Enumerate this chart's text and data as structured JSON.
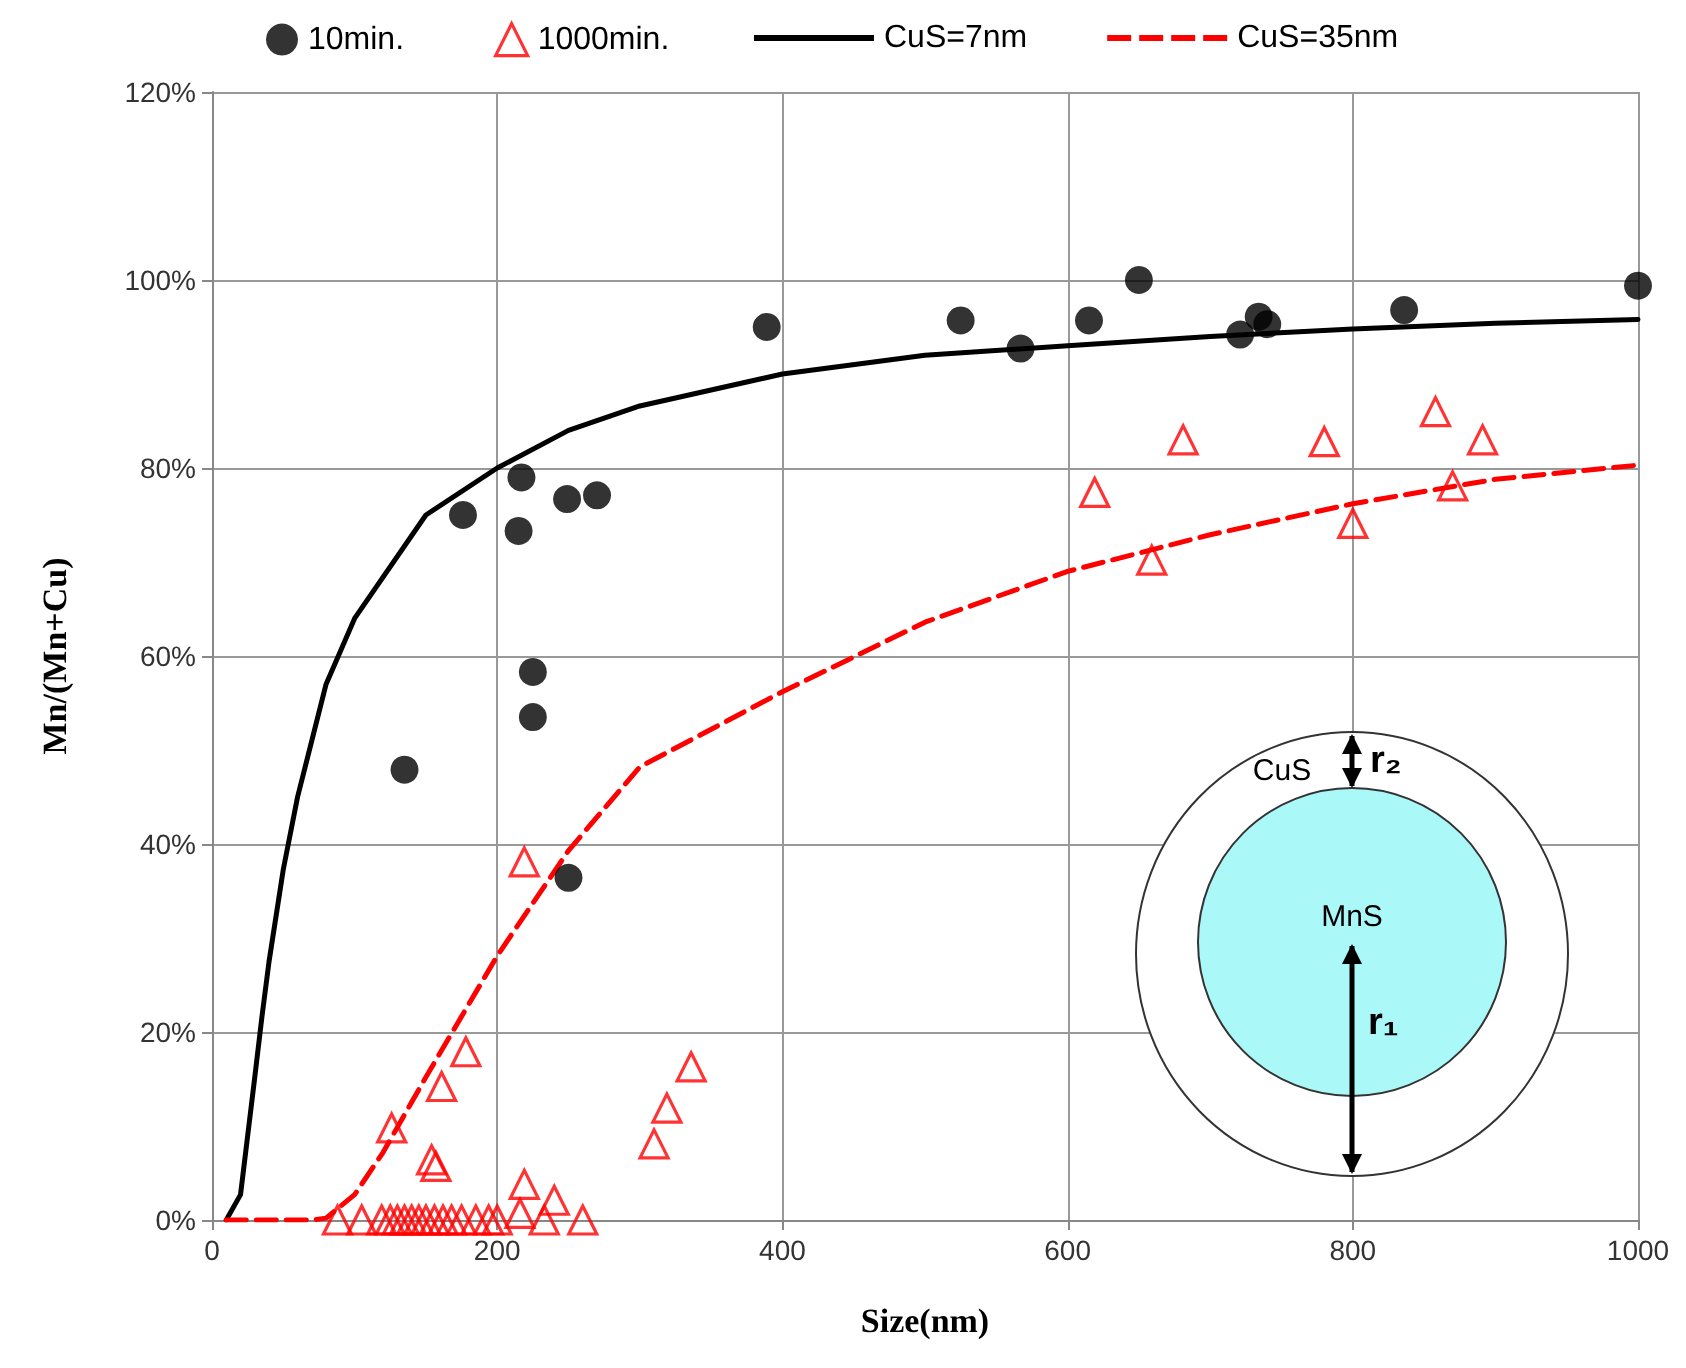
{
  "chart_data": {
    "type": "scatter",
    "xlabel": "Size(nm)",
    "ylabel": "Mn/(Mn+Cu)",
    "xlim": [
      0,
      1000
    ],
    "xticks": [
      0,
      200,
      400,
      600,
      800,
      1000
    ],
    "ylim": [
      0,
      120
    ],
    "yticks": [
      {
        "value": 0,
        "label": "0%"
      },
      {
        "value": 20,
        "label": "20%"
      },
      {
        "value": 40,
        "label": "40%"
      },
      {
        "value": 60,
        "label": "60%"
      },
      {
        "value": 80,
        "label": "80%"
      },
      {
        "value": 100,
        "label": "100%"
      },
      {
        "value": 120,
        "label": "120%"
      }
    ],
    "grid": true,
    "legend": "top",
    "annotations": [
      "CuS",
      "r₂",
      "MnS",
      "r₁"
    ],
    "series": [
      {
        "name": "10min.",
        "marker": "circle",
        "color": "#000000",
        "x": [
          135,
          176,
          217,
          215,
          249,
          270,
          225,
          225,
          250,
          389,
          525,
          567,
          615,
          650,
          721,
          734,
          740,
          836,
          1000
        ],
        "values": [
          47.9,
          75.0,
          79.0,
          73.3,
          76.7,
          77.1,
          58.3,
          53.5,
          36.4,
          95.0,
          95.7,
          92.7,
          95.7,
          100,
          94.2,
          96.1,
          95.3,
          96.8,
          99.4
        ]
      },
      {
        "name": "1000min.",
        "marker": "triangle",
        "color": "#ff0000",
        "x": [
          619,
          681,
          780,
          858,
          891,
          870,
          800,
          659,
          219,
          178,
          161,
          126,
          154,
          157,
          336,
          319,
          310,
          219,
          240,
          216,
          233,
          260,
          88,
          105,
          119,
          125,
          130,
          135,
          140,
          145,
          150,
          156,
          162,
          168,
          175,
          185,
          194,
          200
        ],
        "values": [
          77.4,
          83.0,
          82.8,
          86.0,
          83.0,
          78.1,
          74.1,
          70.2,
          38.1,
          17.9,
          14.2,
          9.8,
          6.4,
          5.7,
          16.3,
          11.9,
          8.1,
          3.8,
          2.1,
          0.7,
          0,
          0,
          0,
          0,
          0,
          0,
          0,
          0,
          0,
          0,
          0,
          0,
          0,
          0,
          0,
          0,
          0,
          0
        ]
      },
      {
        "name": "CuS=7nm",
        "type": "line",
        "marker": "none",
        "line_style": "solid",
        "color": "#000000",
        "x": [
          10,
          20,
          30,
          35,
          40,
          50,
          60,
          80,
          100,
          150,
          200,
          250,
          300,
          400,
          500,
          600,
          700,
          800,
          900,
          1000
        ],
        "values": [
          0,
          2.7,
          15.2,
          21.6,
          27.5,
          37.3,
          45,
          57,
          64,
          75,
          80,
          84,
          86.6,
          90,
          92,
          93,
          94,
          94.8,
          95.4,
          95.8
        ]
      },
      {
        "name": "CuS=35nm",
        "type": "line",
        "marker": "none",
        "line_style": "dashed",
        "color": "#ff0000",
        "x": [
          10,
          70,
          80,
          100,
          120,
          150,
          200,
          250,
          300,
          400,
          500,
          600,
          700,
          800,
          900,
          1000
        ],
        "values": [
          0,
          0,
          0.2,
          2.7,
          7.2,
          15.2,
          28.1,
          39.3,
          48.2,
          56.2,
          63.6,
          69,
          72.9,
          76.2,
          78.8,
          80.3
        ]
      }
    ]
  }
}
